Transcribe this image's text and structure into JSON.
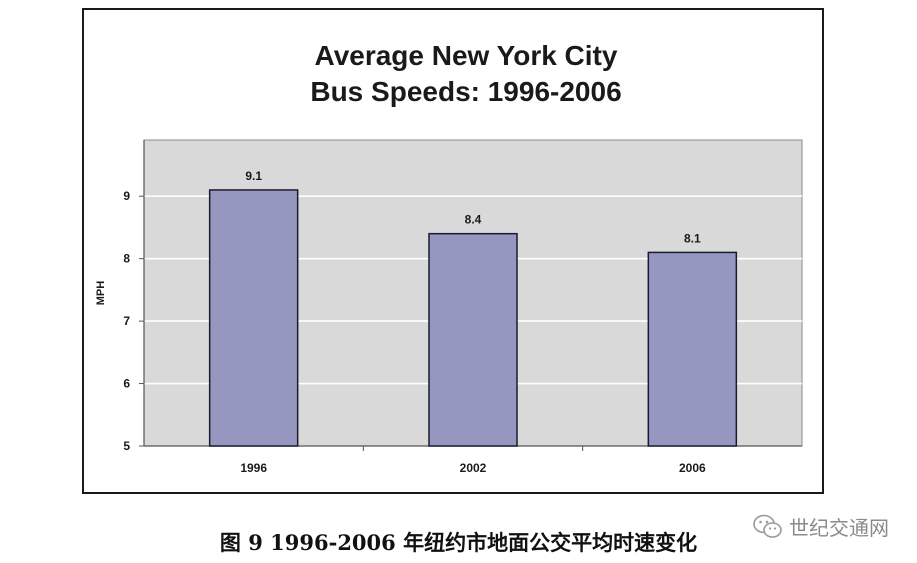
{
  "chart_data": {
    "type": "bar",
    "title": "Average New York City",
    "subtitle": "Bus Speeds: 1996-2006",
    "categories": [
      "1996",
      "2002",
      "2006"
    ],
    "values": [
      9.1,
      8.4,
      8.1
    ],
    "data_labels": [
      "9.1",
      "8.4",
      "8.1"
    ],
    "xlabel": "",
    "ylabel": "MPH",
    "ylim": [
      5,
      9.9
    ],
    "yticks": [
      "5",
      "6",
      "7",
      "8",
      "9"
    ],
    "grid": true,
    "legend": "none",
    "colors": {
      "bar": "#9597c0",
      "bar_stroke": "#1a1a2e",
      "plot_bg": "#d9d9d9",
      "grid": "#ffffff"
    }
  },
  "caption": "图 9 1996-2006 年纽约市地面公交平均时速变化",
  "watermark": {
    "text": "世纪交通网",
    "icon": "wechat-icon"
  }
}
